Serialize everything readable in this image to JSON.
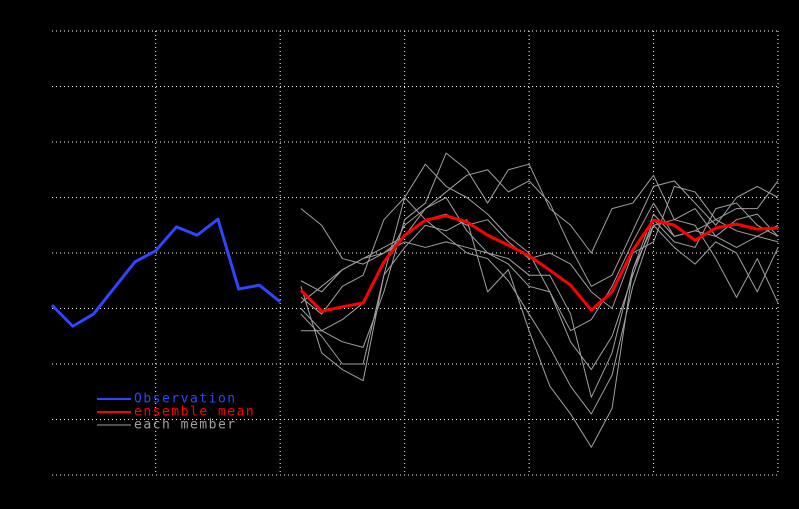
{
  "chart_data": {
    "type": "line",
    "x": [
      1,
      2,
      3,
      4,
      5,
      6,
      7,
      8,
      9,
      10,
      11,
      12,
      13,
      14,
      15,
      16,
      17,
      18,
      19,
      20,
      21,
      22,
      23,
      24,
      25,
      26,
      27,
      28,
      29,
      30,
      31,
      32,
      33,
      34,
      35,
      36
    ],
    "xlim": [
      1,
      36
    ],
    "xticks": [
      6,
      12,
      18,
      24,
      30,
      36
    ],
    "ylim": [
      0,
      8
    ],
    "yticks": [
      0,
      1,
      2,
      3,
      4,
      5,
      6,
      7,
      8
    ],
    "grid": true,
    "background": "#000000",
    "series": [
      {
        "name": "Observation",
        "color": "#2f45ff",
        "values": [
          3.06,
          2.68,
          2.9,
          3.37,
          3.84,
          4.04,
          4.47,
          4.32,
          4.61,
          3.35,
          3.42,
          3.12,
          null,
          null,
          null,
          null,
          null,
          null,
          null,
          null,
          null,
          null,
          null,
          null,
          null,
          null,
          null,
          null,
          null,
          null,
          null,
          null,
          null,
          null,
          null,
          null
        ]
      },
      {
        "name": "ensemble mean",
        "color": "#ff0000",
        "values": [
          null,
          null,
          null,
          null,
          null,
          null,
          null,
          null,
          null,
          null,
          null,
          null,
          3.33,
          2.95,
          3.03,
          3.1,
          3.84,
          4.32,
          4.59,
          4.67,
          4.56,
          4.32,
          4.14,
          3.95,
          3.69,
          3.42,
          2.97,
          3.3,
          4.05,
          4.59,
          4.5,
          4.23,
          4.45,
          4.52,
          4.43,
          4.45
        ]
      },
      {
        "name": "each member",
        "color": "#a0a0a0",
        "members": [
          [
            null,
            null,
            null,
            null,
            null,
            null,
            null,
            null,
            null,
            null,
            null,
            null,
            3.2,
            2.9,
            3.4,
            3.6,
            4.6,
            5.0,
            5.6,
            5.2,
            5.0,
            4.7,
            4.3,
            4.0,
            3.3,
            2.4,
            1.9,
            2.5,
            3.6,
            4.6,
            4.2,
            4.1,
            4.8,
            4.9,
            4.5,
            4.3
          ],
          [
            null,
            null,
            null,
            null,
            null,
            null,
            null,
            null,
            null,
            null,
            null,
            null,
            3.5,
            3.3,
            3.7,
            3.9,
            4.1,
            4.3,
            4.8,
            5.1,
            5.4,
            5.5,
            5.1,
            5.3,
            4.9,
            4.1,
            3.4,
            3.6,
            4.4,
            5.2,
            5.3,
            4.9,
            4.5,
            5.0,
            5.2,
            5.0
          ],
          [
            null,
            null,
            null,
            null,
            null,
            null,
            null,
            null,
            null,
            null,
            null,
            null,
            2.9,
            2.5,
            2.0,
            2.0,
            3.6,
            5.0,
            4.6,
            4.3,
            4.0,
            3.9,
            3.5,
            2.9,
            2.3,
            1.6,
            1.1,
            1.8,
            3.4,
            4.5,
            4.1,
            3.8,
            4.2,
            4.0,
            3.3,
            4.1
          ],
          [
            null,
            null,
            null,
            null,
            null,
            null,
            null,
            null,
            null,
            null,
            null,
            null,
            4.8,
            4.5,
            3.9,
            3.8,
            4.0,
            4.2,
            4.1,
            4.2,
            4.1,
            4.0,
            3.8,
            3.4,
            3.3,
            2.6,
            2.8,
            3.4,
            4.2,
            4.9,
            4.3,
            4.4,
            4.3,
            4.6,
            4.7,
            4.3
          ],
          [
            null,
            null,
            null,
            null,
            null,
            null,
            null,
            null,
            null,
            null,
            null,
            null,
            3.0,
            2.6,
            2.4,
            2.3,
            3.3,
            4.6,
            4.9,
            5.8,
            5.5,
            4.9,
            5.5,
            5.6,
            4.8,
            4.5,
            4.0,
            4.8,
            4.9,
            5.4,
            4.6,
            4.5,
            3.9,
            3.2,
            3.9,
            3.1
          ],
          [
            null,
            null,
            null,
            null,
            null,
            null,
            null,
            null,
            null,
            null,
            null,
            null,
            3.4,
            2.2,
            1.9,
            1.7,
            3.6,
            4.1,
            4.5,
            4.4,
            4.6,
            3.3,
            3.7,
            2.6,
            1.6,
            1.1,
            0.5,
            1.2,
            3.7,
            4.7,
            4.3,
            4.4,
            4.6,
            4.8,
            4.8,
            5.3
          ],
          [
            null,
            null,
            null,
            null,
            null,
            null,
            null,
            null,
            null,
            null,
            null,
            null,
            3.1,
            3.4,
            3.7,
            3.9,
            4.0,
            4.3,
            4.6,
            4.7,
            4.5,
            4.6,
            4.2,
            3.9,
            4.0,
            3.8,
            3.3,
            3.0,
            4.0,
            4.2,
            5.2,
            5.1,
            4.6,
            4.4,
            4.3,
            4.5
          ],
          [
            null,
            null,
            null,
            null,
            null,
            null,
            null,
            null,
            null,
            null,
            null,
            null,
            2.6,
            2.6,
            2.8,
            3.1,
            3.8,
            4.5,
            4.8,
            5.0,
            4.4,
            4.0,
            3.9,
            3.6,
            3.6,
            2.9,
            1.4,
            2.2,
            3.7,
            4.5,
            4.6,
            4.8,
            4.3,
            4.1,
            4.3,
            4.2
          ]
        ]
      }
    ],
    "legend": "lower left"
  }
}
